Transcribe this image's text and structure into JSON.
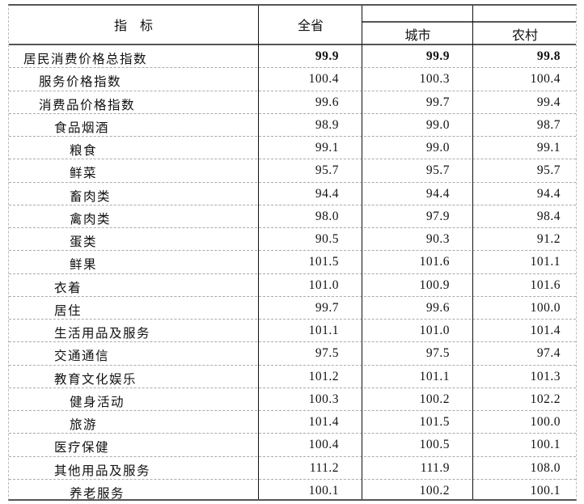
{
  "header": {
    "indicator": "指　标",
    "province": "全省",
    "city": "城市",
    "rural": "农村"
  },
  "rows": [
    {
      "label": "居民消费价格总指数",
      "level": 0,
      "bold": true,
      "province": "99.9",
      "city": "99.9",
      "rural": "99.8"
    },
    {
      "label": "服务价格指数",
      "level": 1,
      "province": "100.4",
      "city": "100.3",
      "rural": "100.4"
    },
    {
      "label": "消费品价格指数",
      "level": 1,
      "province": "99.6",
      "city": "99.7",
      "rural": "99.4"
    },
    {
      "label": "食品烟酒",
      "level": 2,
      "province": "98.9",
      "city": "99.0",
      "rural": "98.7"
    },
    {
      "label": "粮食",
      "level": 3,
      "province": "99.1",
      "city": "99.0",
      "rural": "99.1"
    },
    {
      "label": "鲜菜",
      "level": 3,
      "province": "95.7",
      "city": "95.7",
      "rural": "95.7"
    },
    {
      "label": "畜肉类",
      "level": 3,
      "province": "94.4",
      "city": "94.4",
      "rural": "94.4"
    },
    {
      "label": "禽肉类",
      "level": 3,
      "province": "98.0",
      "city": "97.9",
      "rural": "98.4"
    },
    {
      "label": "蛋类",
      "level": 3,
      "province": "90.5",
      "city": "90.3",
      "rural": "91.2"
    },
    {
      "label": "鲜果",
      "level": 3,
      "province": "101.5",
      "city": "101.6",
      "rural": "101.1"
    },
    {
      "label": "衣着",
      "level": 2,
      "province": "101.0",
      "city": "100.9",
      "rural": "101.6"
    },
    {
      "label": "居住",
      "level": 2,
      "province": "99.7",
      "city": "99.6",
      "rural": "100.0"
    },
    {
      "label": "生活用品及服务",
      "level": 2,
      "province": "101.1",
      "city": "101.0",
      "rural": "101.4"
    },
    {
      "label": "交通通信",
      "level": 2,
      "province": "97.5",
      "city": "97.5",
      "rural": "97.4"
    },
    {
      "label": "教育文化娱乐",
      "level": 2,
      "province": "101.2",
      "city": "101.1",
      "rural": "101.3"
    },
    {
      "label": "健身活动",
      "level": 3,
      "province": "100.3",
      "city": "100.2",
      "rural": "102.2"
    },
    {
      "label": "旅游",
      "level": 3,
      "province": "101.4",
      "city": "101.5",
      "rural": "100.0"
    },
    {
      "label": "医疗保健",
      "level": 2,
      "province": "100.4",
      "city": "100.5",
      "rural": "100.1"
    },
    {
      "label": "其他用品及服务",
      "level": 2,
      "province": "111.2",
      "city": "111.9",
      "rural": "108.0"
    },
    {
      "label": "养老服务",
      "level": 3,
      "province": "100.1",
      "city": "100.2",
      "rural": "100.1"
    }
  ]
}
